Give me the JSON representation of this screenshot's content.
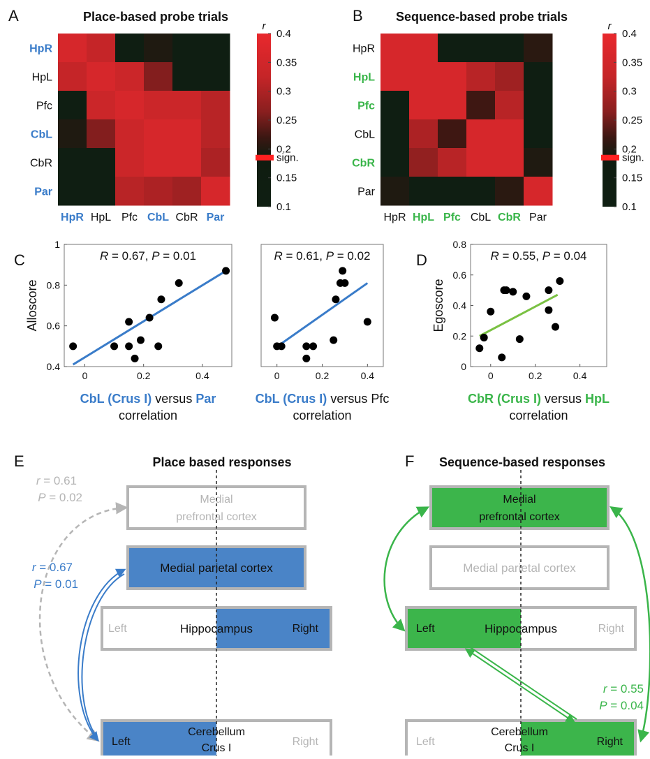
{
  "colors": {
    "blue": "#3a7cc9",
    "green": "#3ab54a",
    "gray": "#b5b5b5",
    "sign": "#ff2020",
    "black": "#111111"
  },
  "panels": {
    "A": "A",
    "B": "B",
    "C": "C",
    "D": "D",
    "E": "E",
    "F": "F"
  },
  "colorbar": {
    "r_label": "r",
    "ticks": [
      "0.4",
      "0.35",
      "0.3",
      "0.25",
      "0.2",
      "0.15",
      "0.1"
    ],
    "tick_values": [
      0.4,
      0.35,
      0.3,
      0.25,
      0.2,
      0.15,
      0.1
    ],
    "sign_label": "sign.",
    "sign_value": 0.185
  },
  "chart_data": [
    {
      "type": "heatmap",
      "title": "Place-based probe trials",
      "labels": [
        "HpR",
        "HpL",
        "Pfc",
        "CbL",
        "CbR",
        "Par"
      ],
      "highlight": [
        true,
        false,
        false,
        true,
        false,
        true
      ],
      "highlight_color": "#3a7cc9",
      "zlim": [
        0.1,
        0.4
      ],
      "values": [
        [
          0.37,
          0.34,
          0.12,
          0.22,
          0.12,
          0.12
        ],
        [
          0.34,
          0.37,
          0.35,
          0.29,
          0.12,
          0.12
        ],
        [
          0.12,
          0.35,
          0.37,
          0.35,
          0.35,
          0.33
        ],
        [
          0.22,
          0.29,
          0.35,
          0.37,
          0.37,
          0.33
        ],
        [
          0.12,
          0.12,
          0.35,
          0.37,
          0.37,
          0.32
        ],
        [
          0.12,
          0.12,
          0.33,
          0.32,
          0.31,
          0.37
        ]
      ]
    },
    {
      "type": "heatmap",
      "title": "Sequence-based probe trials",
      "labels": [
        "HpR",
        "HpL",
        "Pfc",
        "CbL",
        "CbR",
        "Par"
      ],
      "highlight": [
        false,
        true,
        true,
        false,
        true,
        false
      ],
      "highlight_color": "#3ab54a",
      "zlim": [
        0.1,
        0.4
      ],
      "values": [
        [
          0.37,
          0.37,
          0.12,
          0.12,
          0.12,
          0.23
        ],
        [
          0.37,
          0.37,
          0.37,
          0.33,
          0.31,
          0.12
        ],
        [
          0.12,
          0.37,
          0.37,
          0.25,
          0.33,
          0.12
        ],
        [
          0.12,
          0.32,
          0.25,
          0.37,
          0.37,
          0.12
        ],
        [
          0.12,
          0.3,
          0.33,
          0.37,
          0.37,
          0.22
        ],
        [
          0.22,
          0.12,
          0.12,
          0.12,
          0.23,
          0.37
        ]
      ]
    },
    {
      "type": "scatter",
      "ylabel": "Alloscore",
      "xlabel_parts": [
        {
          "text": "CbL (Crus I)",
          "color": "#3a7cc9",
          "bold": true
        },
        {
          "text": " versus ",
          "color": "#111111",
          "bold": false
        },
        {
          "text": "Par",
          "color": "#3a7cc9",
          "bold": true
        }
      ],
      "xlabel_line2": "correlation",
      "stat_R": "R",
      "stat_R_val": " = 0.67, ",
      "stat_P": "P",
      "stat_P_val": " = 0.01",
      "xlim": [
        -0.07,
        0.5
      ],
      "ylim": [
        0.4,
        1
      ],
      "xticks": [
        0,
        0.2,
        0.4
      ],
      "xtick_labels": [
        "0",
        "0.2",
        "0.4"
      ],
      "yticks": [
        0.4,
        0.6,
        0.8,
        1
      ],
      "ytick_labels": [
        "0.4",
        "0.6",
        "0.8",
        "1"
      ],
      "line_color": "#3a7cc9",
      "fit": [
        [
          -0.04,
          0.41
        ],
        [
          0.48,
          0.87
        ]
      ],
      "points": [
        [
          -0.04,
          0.5
        ],
        [
          0.1,
          0.5
        ],
        [
          0.15,
          0.5
        ],
        [
          0.15,
          0.62
        ],
        [
          0.17,
          0.44
        ],
        [
          0.19,
          0.53
        ],
        [
          0.22,
          0.64
        ],
        [
          0.25,
          0.5
        ],
        [
          0.26,
          0.73
        ],
        [
          0.32,
          0.81
        ],
        [
          0.48,
          0.87
        ]
      ]
    },
    {
      "type": "scatter",
      "ylabel": "",
      "xlabel_parts": [
        {
          "text": "CbL (Crus I)",
          "color": "#3a7cc9",
          "bold": true
        },
        {
          "text": " versus Pfc",
          "color": "#111111",
          "bold": false
        }
      ],
      "xlabel_line2": "correlation",
      "stat_R": "R",
      "stat_R_val": " = 0.61, ",
      "stat_P": "P",
      "stat_P_val": " = 0.02",
      "xlim": [
        -0.07,
        0.47
      ],
      "ylim": [
        0.4,
        1
      ],
      "xticks": [
        0,
        0.2,
        0.4
      ],
      "xtick_labels": [
        "0",
        "0.2",
        "0.4"
      ],
      "yticks": [],
      "ytick_labels": [],
      "line_color": "#3a7cc9",
      "fit": [
        [
          -0.01,
          0.49
        ],
        [
          0.4,
          0.81
        ]
      ],
      "points": [
        [
          -0.01,
          0.64
        ],
        [
          0.0,
          0.5
        ],
        [
          0.02,
          0.5
        ],
        [
          0.13,
          0.44
        ],
        [
          0.13,
          0.5
        ],
        [
          0.16,
          0.5
        ],
        [
          0.25,
          0.53
        ],
        [
          0.26,
          0.73
        ],
        [
          0.28,
          0.81
        ],
        [
          0.3,
          0.81
        ],
        [
          0.29,
          0.87
        ],
        [
          0.4,
          0.62
        ]
      ]
    },
    {
      "type": "scatter",
      "ylabel": "Egoscore",
      "xlabel_parts": [
        {
          "text": "CbR (Crus I)",
          "color": "#3ab54a",
          "bold": true
        },
        {
          "text": " versus ",
          "color": "#111111",
          "bold": false
        },
        {
          "text": "HpL",
          "color": "#3ab54a",
          "bold": true
        }
      ],
      "xlabel_line2": "correlation",
      "stat_R": "R",
      "stat_R_val": " = 0.55, ",
      "stat_P": "P",
      "stat_P_val": " = 0.04",
      "xlim": [
        -0.09,
        0.52
      ],
      "ylim": [
        0,
        0.8
      ],
      "xticks": [
        0,
        0.2,
        0.4
      ],
      "xtick_labels": [
        "0",
        "0.2",
        "0.4"
      ],
      "yticks": [
        0,
        0.2,
        0.4,
        0.6,
        0.8
      ],
      "ytick_labels": [
        "0",
        "0.2",
        "0.4",
        "0.6",
        "0.8"
      ],
      "line_color": "#7ac143",
      "fit": [
        [
          -0.05,
          0.2
        ],
        [
          0.3,
          0.47
        ]
      ],
      "points": [
        [
          -0.05,
          0.12
        ],
        [
          -0.03,
          0.19
        ],
        [
          0.0,
          0.36
        ],
        [
          0.05,
          0.06
        ],
        [
          0.06,
          0.5
        ],
        [
          0.07,
          0.5
        ],
        [
          0.1,
          0.49
        ],
        [
          0.13,
          0.18
        ],
        [
          0.16,
          0.46
        ],
        [
          0.26,
          0.5
        ],
        [
          0.26,
          0.37
        ],
        [
          0.29,
          0.26
        ],
        [
          0.31,
          0.56
        ]
      ]
    }
  ],
  "diagram_E": {
    "title": "Place based responses",
    "stat_top_r": "r",
    "stat_top_r_val": " = 0.61",
    "stat_top_p": "P",
    "stat_top_p_val": " = 0.02",
    "stat_mid_r": "r",
    "stat_mid_r_val": " = 0.67",
    "stat_mid_p": "P",
    "stat_mid_p_val": " = 0.01",
    "pfc_line1": "Medial",
    "pfc_line2": "prefrontal cortex",
    "parietal": "Medial parietal cortex",
    "hipp_left": "Left",
    "hipp_center": "Hippocampus",
    "hipp_right": "Right",
    "cb_left": "Left",
    "cb_line1": "Cerebellum",
    "cb_line2": "Crus I",
    "cb_right": "Right"
  },
  "diagram_F": {
    "title": "Sequence-based responses",
    "stat_r": "r",
    "stat_r_val": " = 0.55",
    "stat_p": "P",
    "stat_p_val": " = 0.04",
    "pfc_line1": "Medial",
    "pfc_line2": "prefrontal cortex",
    "parietal": "Medial parietal cortex",
    "hipp_left": "Left",
    "hipp_center": "Hippocampus",
    "hipp_right": "Right",
    "cb_left": "Left",
    "cb_line1": "Cerebellum",
    "cb_line2": "Crus I",
    "cb_right": "Right"
  }
}
